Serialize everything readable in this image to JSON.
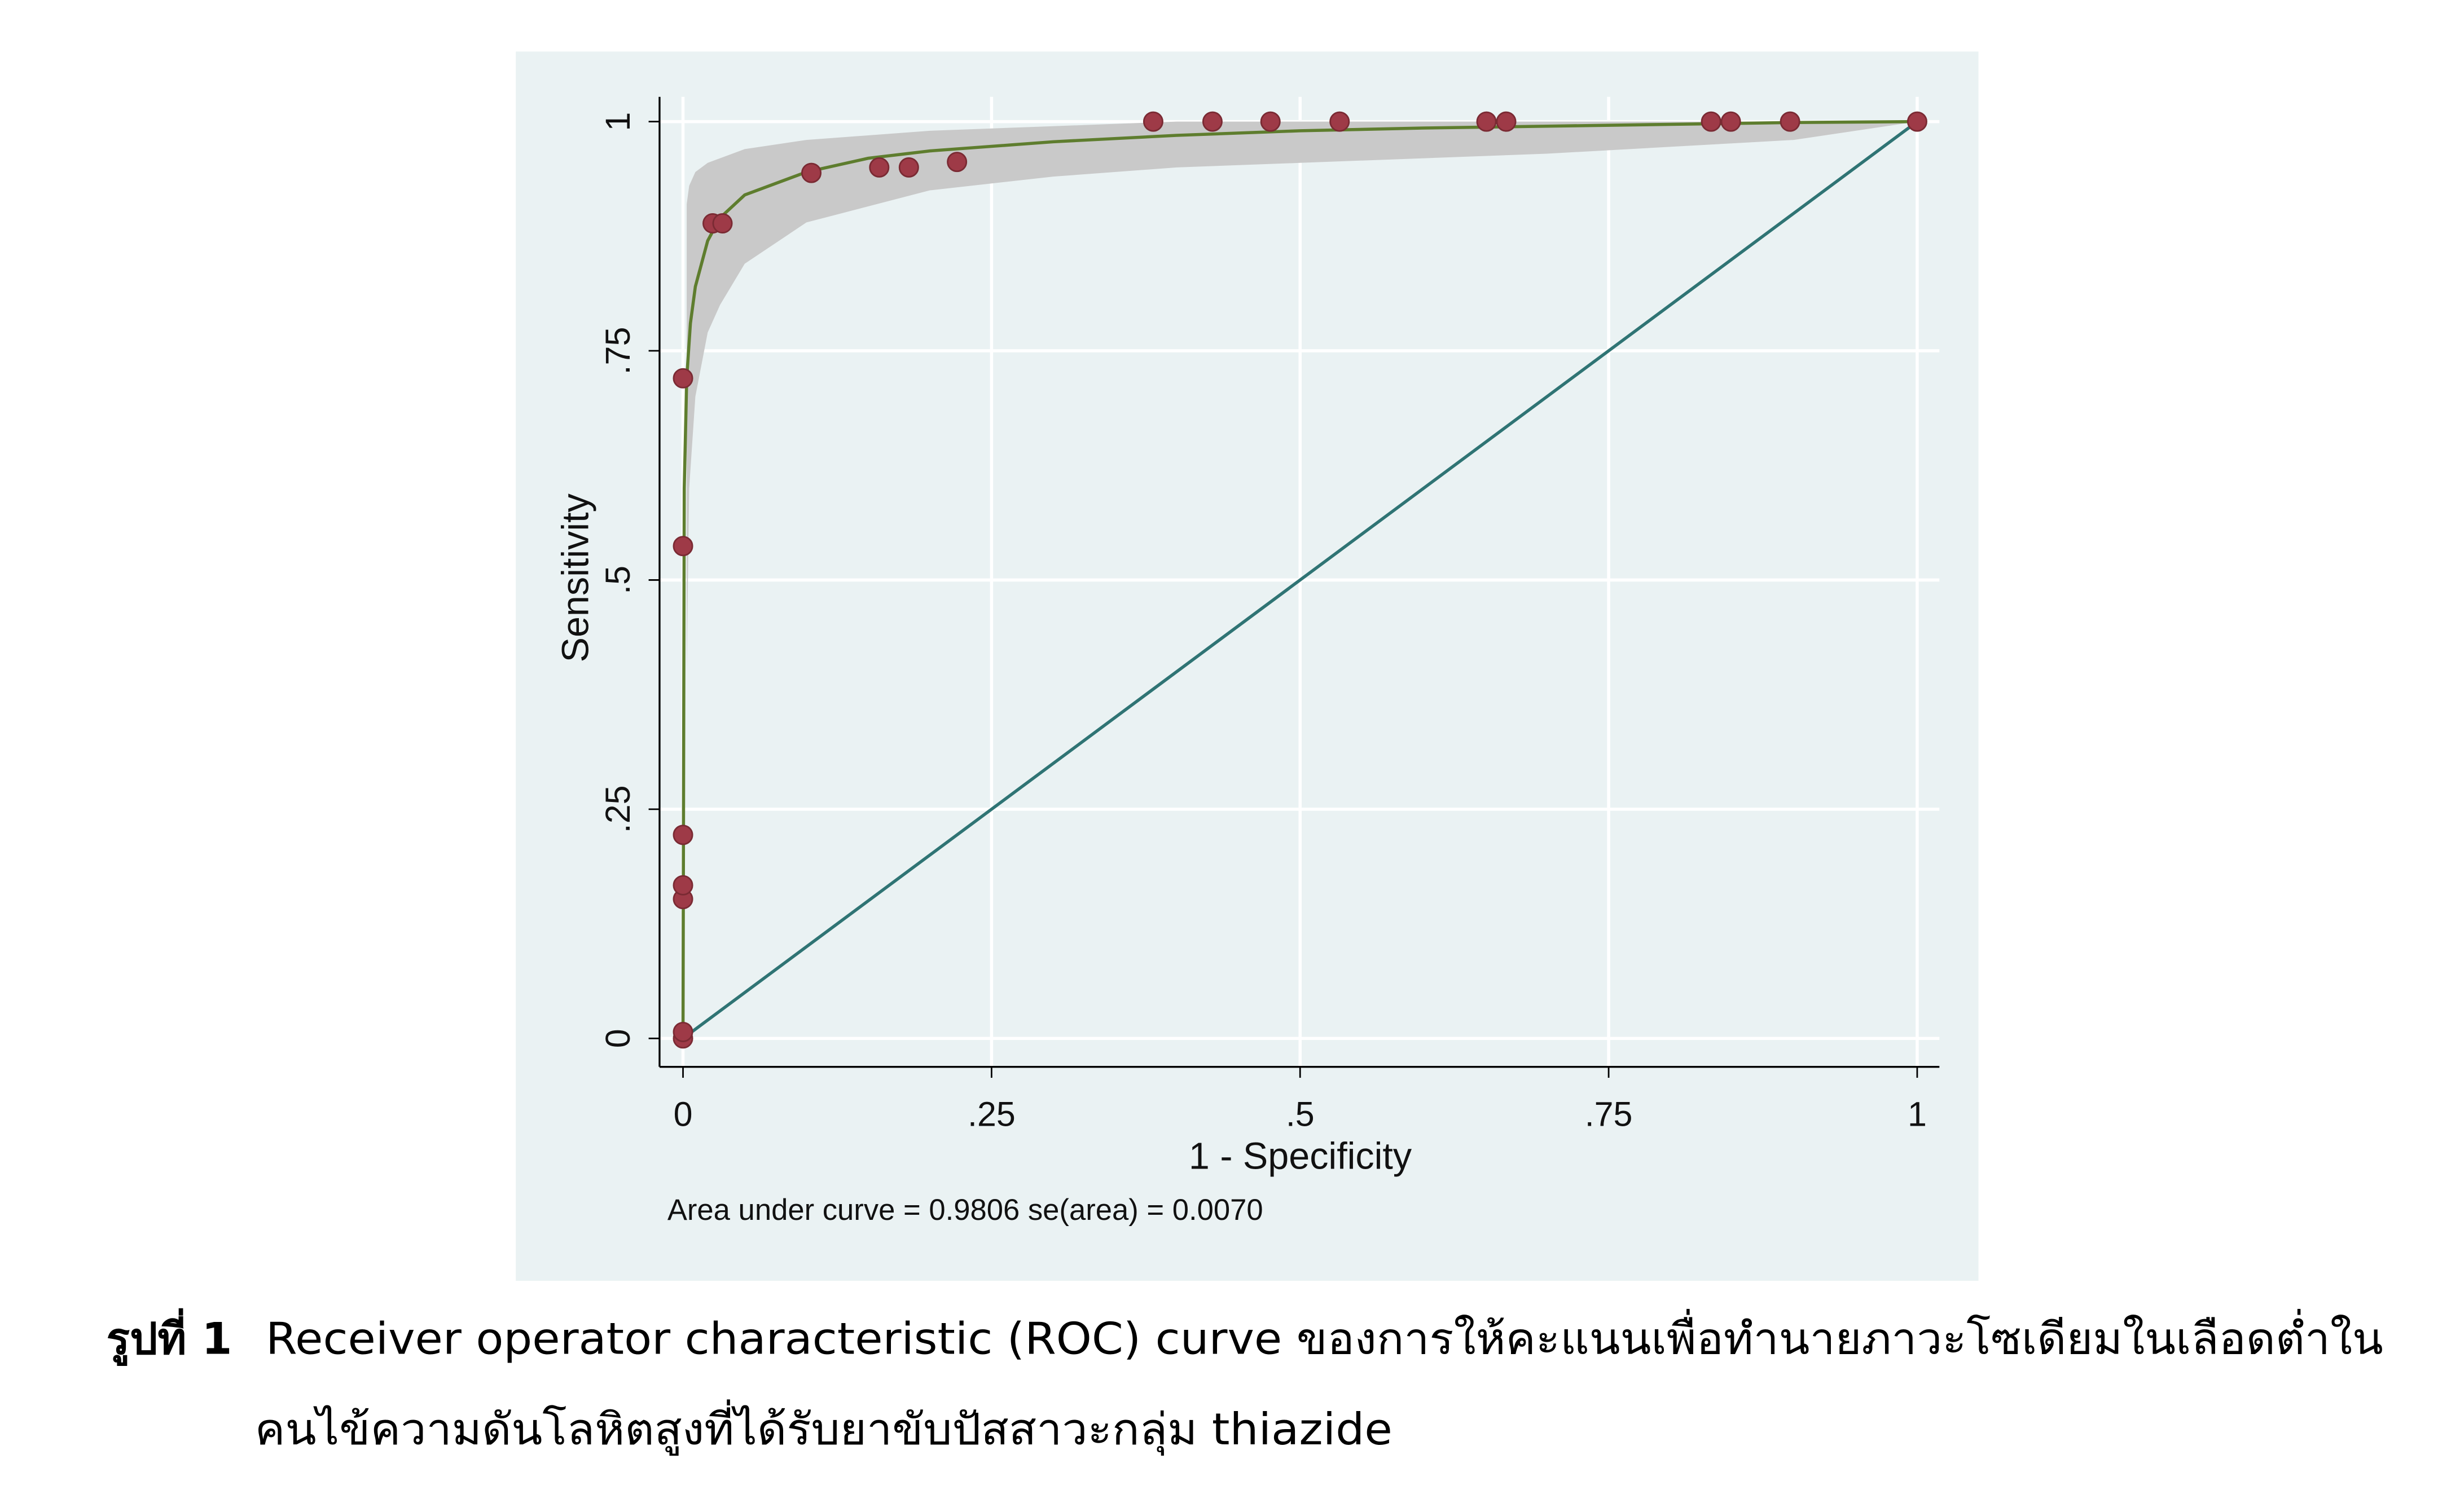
{
  "chart_data": {
    "type": "scatter",
    "x_label": "1 - Specificity",
    "y_label": "Sensitivity",
    "note": "Area under curve = 0.9806  se(area) = 0.0070",
    "x": [
      0,
      0,
      0,
      0,
      0,
      0,
      0,
      0.024,
      0.032,
      0.104,
      0.159,
      0.183,
      0.222,
      0.381,
      0.429,
      0.476,
      0.532,
      0.651,
      0.667,
      0.833,
      0.849,
      0.897,
      1
    ],
    "values": [
      0,
      0.007,
      0.152,
      0.167,
      0.222,
      0.537,
      0.72,
      0.889,
      0.889,
      0.944,
      0.95,
      0.95,
      0.956,
      1,
      1,
      1,
      1,
      1,
      1,
      1,
      1,
      1,
      1
    ],
    "color": "#9e3a47",
    "fit": {
      "color": "#5e7d2e",
      "x": [
        0,
        0.001,
        0.003,
        0.006,
        0.01,
        0.02,
        0.03,
        0.05,
        0.1,
        0.15,
        0.2,
        0.3,
        0.4,
        0.5,
        0.6,
        0.7,
        0.8,
        0.9,
        1
      ],
      "y": [
        0,
        0.6,
        0.72,
        0.78,
        0.82,
        0.87,
        0.895,
        0.92,
        0.945,
        0.96,
        0.968,
        0.978,
        0.985,
        0.99,
        0.993,
        0.995,
        0.997,
        0.999,
        1
      ]
    },
    "band": {
      "color": "#c9c9c9",
      "x": [
        0.003,
        0.005,
        0.01,
        0.02,
        0.03,
        0.05,
        0.1,
        0.2,
        0.3,
        0.4,
        0.5,
        0.7,
        0.9,
        1
      ],
      "lower": [
        0.4,
        0.6,
        0.7,
        0.77,
        0.8,
        0.845,
        0.89,
        0.925,
        0.94,
        0.95,
        0.955,
        0.965,
        0.98,
        1
      ],
      "upper": [
        0.91,
        0.93,
        0.945,
        0.955,
        0.96,
        0.97,
        0.98,
        0.99,
        0.995,
        1,
        1,
        1,
        1,
        1
      ]
    },
    "reference_line": {
      "color": "#2f7474",
      "x": [
        0,
        1
      ],
      "y": [
        0,
        1
      ]
    },
    "xlim": [
      -0.019,
      1.018
    ],
    "ylim": [
      -0.031,
      1.027
    ],
    "xticks": [
      0,
      {
        "value": 0.25,
        "label": ".25"
      },
      {
        "value": 0.5,
        "label": ".5"
      },
      {
        "value": 0.75,
        "label": ".75"
      },
      1
    ],
    "yticks": [
      0,
      {
        "value": 0.25,
        "label": ".25"
      },
      {
        "value": 0.5,
        "label": ".5"
      },
      {
        "value": 0.75,
        "label": ".75"
      },
      1
    ],
    "grid": true
  },
  "caption": {
    "label": "รูปที่ 1",
    "lines": [
      "Receiver operator characteristic (ROC) curve ของการให้คะแนนเพื่อทำนายภาวะโซเดียมในเลือดต่ำใน",
      "คนไข้ความดันโลหิตสูงที่ได้รับยาขับปัสสาวะกลุ่ม thiazide"
    ]
  }
}
